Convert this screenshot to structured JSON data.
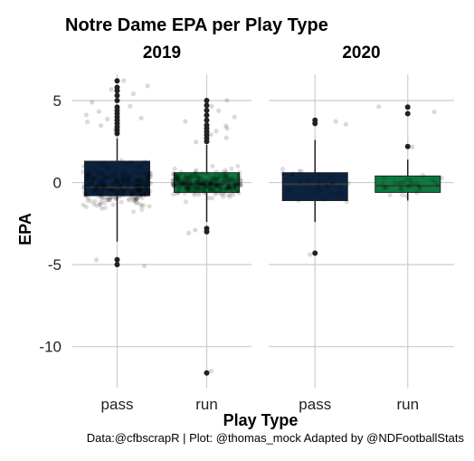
{
  "chart_data": {
    "type": "box",
    "title": "Notre Dame EPA per Play Type",
    "xlabel": "Play Type",
    "ylabel": "EPA",
    "caption": "Data:@cfbscrapR | Plot: @thomas_mock Adapted by @NDFootballStats",
    "ylim": [
      -12.5,
      6.6
    ],
    "yticks": [
      5,
      0,
      -5,
      -10
    ],
    "ytick_labels": [
      "5",
      "0",
      "-5",
      "-10"
    ],
    "categories": [
      "pass",
      "run"
    ],
    "grid": true,
    "colors": {
      "pass": "#0c2340",
      "run": "#0c7a3e"
    },
    "panels": [
      {
        "facet": "2019",
        "boxes": [
          {
            "category": "pass",
            "q1": -0.8,
            "median": -0.3,
            "q3": 1.3,
            "whisker_low": -3.6,
            "whisker_high": 2.7,
            "outliers": [
              6.2,
              5.8,
              5.6,
              5.3,
              5.0,
              4.6,
              4.4,
              4.2,
              4.0,
              3.8,
              3.6,
              3.4,
              3.2,
              3.0,
              -4.7,
              -5.0
            ]
          },
          {
            "category": "run",
            "q1": -0.6,
            "median": -0.1,
            "q3": 0.6,
            "whisker_low": -2.4,
            "whisker_high": 2.3,
            "outliers": [
              5.0,
              4.7,
              4.4,
              4.1,
              3.8,
              3.5,
              3.3,
              3.1,
              2.9,
              2.7,
              2.5,
              -2.8,
              -3.0,
              -11.6
            ]
          }
        ]
      },
      {
        "facet": "2020",
        "boxes": [
          {
            "category": "pass",
            "q1": -1.1,
            "median": -0.1,
            "q3": 0.6,
            "whisker_low": -2.4,
            "whisker_high": 2.6,
            "outliers": [
              3.8,
              3.6,
              -4.3
            ]
          },
          {
            "category": "run",
            "q1": -0.6,
            "median": -0.2,
            "q3": 0.4,
            "whisker_low": -1.1,
            "whisker_high": 1.4,
            "outliers": [
              4.6,
              4.2,
              2.2
            ]
          }
        ]
      }
    ]
  }
}
